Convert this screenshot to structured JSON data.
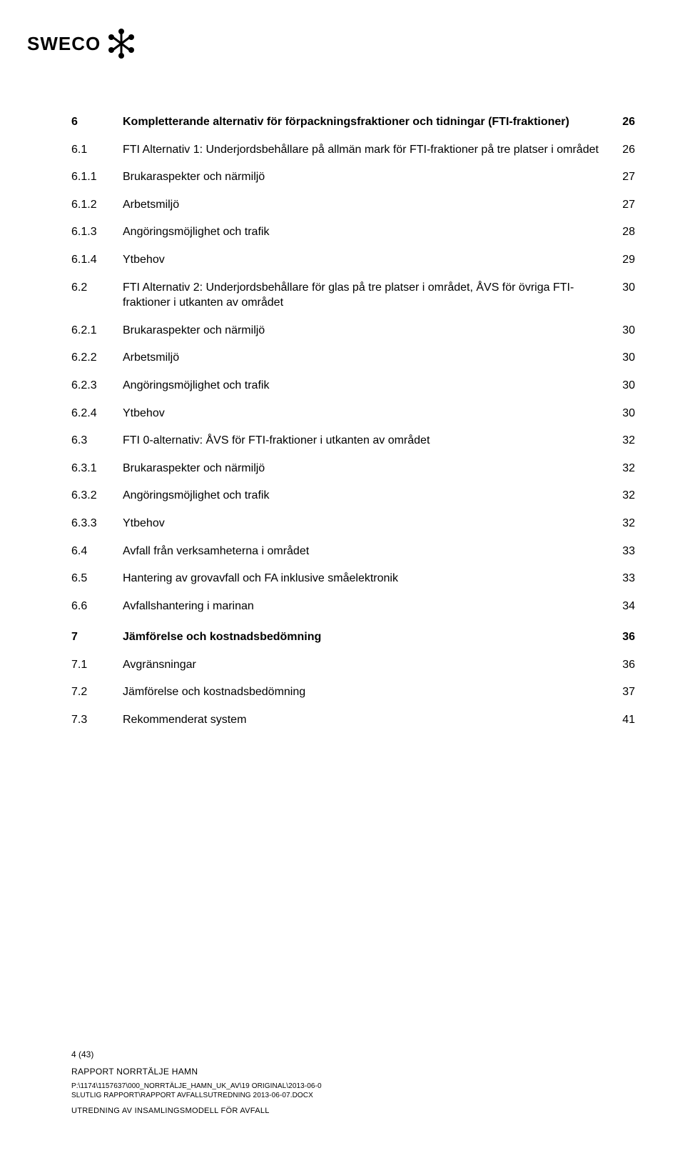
{
  "logo_text": "SWECO",
  "toc": [
    {
      "level": 0,
      "num": "6",
      "title": "Kompletterande alternativ för förpackningsfraktioner och tidningar (FTI-fraktioner)",
      "page": "26"
    },
    {
      "level": 1,
      "num": "6.1",
      "title": "FTI Alternativ 1: Underjordsbehållare på allmän mark för FTI-fraktioner på tre platser i området",
      "page": "26"
    },
    {
      "level": 2,
      "num": "6.1.1",
      "title": "Brukaraspekter och närmiljö",
      "page": "27"
    },
    {
      "level": 2,
      "num": "6.1.2",
      "title": "Arbetsmiljö",
      "page": "27"
    },
    {
      "level": 2,
      "num": "6.1.3",
      "title": "Angöringsmöjlighet och trafik",
      "page": "28"
    },
    {
      "level": 2,
      "num": "6.1.4",
      "title": "Ytbehov",
      "page": "29"
    },
    {
      "level": 1,
      "num": "6.2",
      "title": "FTI Alternativ 2: Underjordsbehållare för glas på tre platser i området, ÅVS för övriga FTI-fraktioner i utkanten av området",
      "page": "30"
    },
    {
      "level": 2,
      "num": "6.2.1",
      "title": "Brukaraspekter och närmiljö",
      "page": "30"
    },
    {
      "level": 2,
      "num": "6.2.2",
      "title": "Arbetsmiljö",
      "page": "30"
    },
    {
      "level": 2,
      "num": "6.2.3",
      "title": "Angöringsmöjlighet och trafik",
      "page": "30"
    },
    {
      "level": 2,
      "num": "6.2.4",
      "title": "Ytbehov",
      "page": "30"
    },
    {
      "level": 1,
      "num": "6.3",
      "title": "FTI 0-alternativ: ÅVS för FTI-fraktioner i utkanten av området",
      "page": "32"
    },
    {
      "level": 2,
      "num": "6.3.1",
      "title": "Brukaraspekter och närmiljö",
      "page": "32"
    },
    {
      "level": 2,
      "num": "6.3.2",
      "title": "Angöringsmöjlighet och trafik",
      "page": "32"
    },
    {
      "level": 2,
      "num": "6.3.3",
      "title": "Ytbehov",
      "page": "32"
    },
    {
      "level": 1,
      "num": "6.4",
      "title": "Avfall från verksamheterna i området",
      "page": "33"
    },
    {
      "level": 1,
      "num": "6.5",
      "title": "Hantering av grovavfall och FA inklusive småelektronik",
      "page": "33"
    },
    {
      "level": 1,
      "num": "6.6",
      "title": "Avfallshantering i marinan",
      "page": "34"
    },
    {
      "level": 0,
      "num": "7",
      "title": "Jämförelse och kostnadsbedömning",
      "page": "36",
      "gap": true
    },
    {
      "level": 1,
      "num": "7.1",
      "title": "Avgränsningar",
      "page": "36"
    },
    {
      "level": 1,
      "num": "7.2",
      "title": "Jämförelse och kostnadsbedömning",
      "page": "37"
    },
    {
      "level": 1,
      "num": "7.3",
      "title": "Rekommenderat system",
      "page": "41"
    }
  ],
  "footer": {
    "page_counter": "4 (43)",
    "caption": "RAPPORT NORRTÄLJE HAMN",
    "path1": "P:\\1174\\1157637\\000_NORRTÄLJE_HAMN_UK_AV\\19 ORIGINAL\\2013-06-0",
    "path2": "SLUTLIG RAPPORT\\RAPPORT AVFALLSUTREDNING 2013-06-07.DOCX",
    "subtitle": "UTREDNING AV INSAMLINGSMODELL FÖR AVFALL"
  }
}
